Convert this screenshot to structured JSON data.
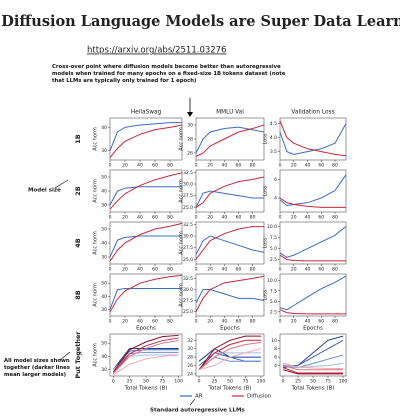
{
  "header": {
    "title": "Diffusion Language Models are Super Data Learners",
    "url": "https://arxiv.org/abs/2511.03276"
  },
  "annotations": {
    "crossover": "Cross-over point where diffusion models become better than autoregressive models when trained for many epochs on a fixed-size 1B tokens dataset (note that LLMs are typically only trained for 1 epoch)",
    "model_size": "Model size",
    "together": "All model sizes shown together (darker lines mean larger models)",
    "standard": "Standard autoregressive LLMs"
  },
  "row_labels": [
    "1B",
    "2B",
    "4B",
    "8B",
    "Put Together"
  ],
  "chart_data": [
    {
      "type": "line",
      "title": "HellaSwag",
      "ylabel": "Acc norm",
      "x": [
        0,
        10,
        20,
        40,
        60,
        80,
        96
      ],
      "xlim": [
        0,
        96
      ],
      "xticks": [
        0,
        20,
        40,
        60,
        80
      ],
      "ylim": [
        26,
        44
      ],
      "yticks": [
        30,
        40
      ],
      "series": [
        {
          "name": "AR",
          "color": "#3a6cc4",
          "values": [
            30,
            38,
            40,
            41,
            41.5,
            42,
            42
          ]
        },
        {
          "name": "Diffusion",
          "color": "#c8283c",
          "values": [
            27,
            31,
            34,
            37,
            39,
            40,
            41
          ]
        }
      ]
    },
    {
      "type": "line",
      "title": "MMLU Val",
      "ylabel": "Acc norm",
      "x": [
        0,
        10,
        20,
        40,
        60,
        80,
        96
      ],
      "xlim": [
        0,
        96
      ],
      "xticks": [
        0,
        20,
        40,
        60,
        80
      ],
      "ylim": [
        25,
        31
      ],
      "yticks": [
        26,
        28,
        30
      ],
      "series": [
        {
          "color": "#3a6cc4",
          "values": [
            26,
            28,
            29,
            29.5,
            29.7,
            29.3,
            29
          ]
        },
        {
          "color": "#c8283c",
          "values": [
            25.5,
            26,
            27,
            28,
            29,
            29.5,
            30
          ]
        }
      ]
    },
    {
      "type": "line",
      "title": "Validation Loss",
      "ylabel": "Loss",
      "x": [
        0,
        10,
        20,
        40,
        60,
        80,
        96
      ],
      "xlim": [
        0,
        96
      ],
      "xticks": [
        0,
        20,
        40,
        60,
        80
      ],
      "ylim": [
        3.2,
        4.7
      ],
      "yticks": [
        3.5,
        {
          "value": 4,
          "label": "4.0"
        },
        4.5
      ],
      "series": [
        {
          "color": "#3a6cc4",
          "values": [
            4.2,
            3.5,
            3.4,
            3.5,
            3.6,
            3.8,
            4.5
          ]
        },
        {
          "color": "#c8283c",
          "values": [
            4.6,
            4.0,
            3.8,
            3.6,
            3.5,
            3.4,
            3.35
          ]
        }
      ]
    },
    {
      "type": "line",
      "ylabel": "Acc norm",
      "x": [
        0,
        10,
        20,
        40,
        60,
        80,
        96
      ],
      "xlim": [
        0,
        96
      ],
      "xticks": [
        0,
        20,
        40,
        60,
        80
      ],
      "ylim": [
        25,
        55
      ],
      "yticks": [
        30,
        40,
        50
      ],
      "series": [
        {
          "color": "#3a6cc4",
          "values": [
            30,
            40,
            42,
            43,
            43,
            43,
            43
          ]
        },
        {
          "color": "#c8283c",
          "values": [
            27,
            33,
            38,
            44,
            48,
            51,
            53
          ]
        }
      ]
    },
    {
      "type": "line",
      "ylabel": "Acc norm",
      "x": [
        0,
        10,
        20,
        40,
        60,
        80,
        96
      ],
      "xlim": [
        0,
        96
      ],
      "xticks": [
        0,
        20,
        40,
        60,
        80
      ],
      "ylim": [
        24,
        33
      ],
      "yticks": [
        {
          "value": 25,
          "label": "25.0"
        },
        27.5,
        {
          "value": 30,
          "label": "30.0"
        },
        32.5
      ],
      "series": [
        {
          "color": "#3a6cc4",
          "values": [
            25,
            28,
            28.5,
            28,
            27.5,
            27,
            27
          ]
        },
        {
          "color": "#c8283c",
          "values": [
            25,
            26,
            28,
            29.5,
            30.5,
            31,
            31.5
          ]
        }
      ]
    },
    {
      "type": "line",
      "ylabel": "Loss",
      "x": [
        0,
        10,
        20,
        40,
        60,
        80,
        96
      ],
      "xlim": [
        0,
        96
      ],
      "xticks": [
        0,
        20,
        40,
        60,
        80
      ],
      "ylim": [
        2.5,
        7
      ],
      "yticks": [
        4,
        6
      ],
      "series": [
        {
          "color": "#3a6cc4",
          "values": [
            3.8,
            3.2,
            3.3,
            3.5,
            4,
            4.8,
            6.5
          ]
        },
        {
          "color": "#c8283c",
          "values": [
            4,
            3.5,
            3.3,
            3.1,
            3,
            3,
            3
          ]
        }
      ]
    },
    {
      "type": "line",
      "ylabel": "Acc norm",
      "x": [
        0,
        10,
        20,
        40,
        60,
        80,
        96
      ],
      "xlim": [
        0,
        96
      ],
      "xticks": [
        0,
        20,
        40,
        60,
        80
      ],
      "ylim": [
        25,
        55
      ],
      "yticks": [
        30,
        40,
        50
      ],
      "series": [
        {
          "color": "#3a6cc4",
          "values": [
            30,
            42,
            44,
            45,
            45,
            45,
            45
          ]
        },
        {
          "color": "#c8283c",
          "values": [
            27,
            35,
            40,
            46,
            50,
            52,
            54
          ]
        }
      ]
    },
    {
      "type": "line",
      "ylabel": "Acc norm",
      "x": [
        0,
        10,
        20,
        40,
        60,
        80,
        96
      ],
      "xlim": [
        0,
        96
      ],
      "xticks": [
        0,
        20,
        40,
        60,
        80
      ],
      "ylim": [
        24,
        33
      ],
      "yticks": [
        {
          "value": 25,
          "label": "25.0"
        },
        27.5,
        {
          "value": 30,
          "label": "30.0"
        },
        32.5
      ],
      "series": [
        {
          "color": "#3a6cc4",
          "values": [
            26,
            29,
            30,
            29,
            28,
            27,
            26.5
          ]
        },
        {
          "color": "#c8283c",
          "values": [
            25,
            27,
            29,
            30.5,
            31.5,
            32,
            32
          ]
        }
      ]
    },
    {
      "type": "line",
      "ylabel": "Loss",
      "x": [
        0,
        10,
        20,
        40,
        60,
        80,
        96
      ],
      "xlim": [
        0,
        96
      ],
      "xticks": [
        0,
        20,
        40,
        60,
        80
      ],
      "ylim": [
        1.5,
        11
      ],
      "yticks": [
        2.5,
        {
          "value": 5,
          "label": "5.0"
        },
        7.5,
        {
          "value": 10,
          "label": "10.0"
        }
      ],
      "series": [
        {
          "color": "#3a6cc4",
          "values": [
            4,
            3,
            3.5,
            5,
            6.5,
            8,
            10
          ]
        },
        {
          "color": "#c8283c",
          "values": [
            3.5,
            2.5,
            2.3,
            2.2,
            2.2,
            2.2,
            2.2
          ]
        }
      ]
    },
    {
      "type": "line",
      "ylabel": "Acc norm",
      "xlabel": "Epochs",
      "x": [
        0,
        10,
        20,
        40,
        60,
        80,
        96
      ],
      "xlim": [
        0,
        96
      ],
      "xticks": [
        0,
        20,
        40,
        60,
        80
      ],
      "ylim": [
        25,
        57
      ],
      "yticks": [
        30,
        40,
        50
      ],
      "series": [
        {
          "color": "#3a6cc4",
          "values": [
            30,
            45,
            46,
            46,
            46,
            46,
            46
          ]
        },
        {
          "color": "#c8283c",
          "values": [
            28,
            38,
            44,
            50,
            53,
            55,
            56
          ]
        }
      ]
    },
    {
      "type": "line",
      "ylabel": "Acc norm",
      "xlabel": "Epochs",
      "x": [
        0,
        10,
        20,
        40,
        60,
        80,
        96
      ],
      "xlim": [
        0,
        96
      ],
      "xticks": [
        0,
        20,
        40,
        60,
        80
      ],
      "ylim": [
        24,
        33.5
      ],
      "yticks": [
        {
          "value": 25,
          "label": "25.0"
        },
        27.5,
        {
          "value": 30,
          "label": "30.0"
        },
        32.5
      ],
      "series": [
        {
          "color": "#3a6cc4",
          "values": [
            27,
            30,
            30,
            29,
            28,
            28,
            27.5
          ]
        },
        {
          "color": "#c8283c",
          "values": [
            25,
            28,
            30,
            31.5,
            32,
            32.5,
            33
          ]
        }
      ]
    },
    {
      "type": "line",
      "ylabel": "Loss",
      "xlabel": "Epochs",
      "x": [
        0,
        10,
        20,
        40,
        60,
        80,
        96
      ],
      "xlim": [
        0,
        96
      ],
      "xticks": [
        0,
        20,
        40,
        60,
        80
      ],
      "ylim": [
        1.5,
        11.5
      ],
      "yticks": [
        2.5,
        {
          "value": 5,
          "label": "5.0"
        },
        7.5,
        {
          "value": 10,
          "label": "10.0"
        }
      ],
      "series": [
        {
          "color": "#3a6cc4",
          "values": [
            3.5,
            3,
            4,
            6,
            8,
            9.5,
            11
          ]
        },
        {
          "color": "#c8283c",
          "values": [
            3,
            2.3,
            2.1,
            2,
            2,
            2,
            2
          ]
        }
      ]
    },
    {
      "type": "line",
      "ylabel": "Acc norm",
      "xlabel": "Total Tokens (B)",
      "x": [
        0,
        25,
        50,
        75,
        100
      ],
      "xlim": [
        -5,
        105
      ],
      "xticks": [
        0,
        25,
        50,
        75,
        100
      ],
      "ylim": [
        25,
        57
      ],
      "yticks": [
        30,
        40,
        50
      ],
      "series": [
        {
          "color": "#1f3f8a",
          "values": [
            30,
            46,
            46,
            46,
            46
          ]
        },
        {
          "color": "#3a62b8",
          "values": [
            30,
            44,
            45,
            45,
            45
          ]
        },
        {
          "color": "#6b8fd4",
          "values": [
            30,
            42,
            43,
            43,
            43
          ]
        },
        {
          "color": "#a5bde8",
          "values": [
            30,
            40,
            41,
            41,
            41
          ]
        },
        {
          "color": "#8b0f24",
          "values": [
            28,
            45,
            51,
            55,
            56
          ]
        },
        {
          "color": "#c0283c",
          "values": [
            27,
            42,
            48,
            52,
            54
          ]
        },
        {
          "color": "#e0707f",
          "values": [
            27,
            40,
            46,
            50,
            52
          ]
        },
        {
          "color": "#f0aab3",
          "values": [
            26,
            34,
            38,
            40,
            41
          ]
        }
      ]
    },
    {
      "type": "line",
      "xlabel": "Total Tokens (B)",
      "x": [
        0,
        25,
        50,
        75,
        100
      ],
      "xlim": [
        -5,
        105
      ],
      "xticks": [
        0,
        25,
        50,
        75,
        100
      ],
      "ylim": [
        23.5,
        33.5
      ],
      "yticks": [
        24,
        26,
        28,
        30,
        32
      ],
      "series": [
        {
          "color": "#1f3f8a",
          "values": [
            27,
            30,
            28,
            28,
            28
          ]
        },
        {
          "color": "#3a62b8",
          "values": [
            26,
            29,
            28,
            27,
            27
          ]
        },
        {
          "color": "#6b8fd4",
          "values": [
            25,
            28,
            27,
            27,
            27
          ]
        },
        {
          "color": "#a5bde8",
          "values": [
            25,
            29,
            29,
            29,
            29
          ]
        },
        {
          "color": "#8b0f24",
          "values": [
            25,
            30,
            32,
            33,
            33
          ]
        },
        {
          "color": "#c0283c",
          "values": [
            25,
            29,
            31,
            32,
            32
          ]
        },
        {
          "color": "#e0707f",
          "values": [
            25,
            28,
            30,
            31,
            31.5
          ]
        },
        {
          "color": "#f0aab3",
          "values": [
            25,
            26,
            28,
            29,
            30
          ]
        }
      ]
    },
    {
      "type": "line",
      "xlabel": "Total Tokens (B)",
      "x": [
        0,
        25,
        50,
        75,
        100
      ],
      "xlim": [
        -5,
        105
      ],
      "xticks": [
        0,
        25,
        50,
        75,
        100
      ],
      "ylim": [
        1.5,
        11.5
      ],
      "yticks": [
        4,
        6,
        8,
        10
      ],
      "series": [
        {
          "color": "#1f3f8a",
          "values": [
            3.5,
            4,
            7,
            10,
            11
          ]
        },
        {
          "color": "#3a62b8",
          "values": [
            4,
            4,
            6,
            8,
            10
          ]
        },
        {
          "color": "#6b8fd4",
          "values": [
            3.8,
            3.5,
            4.5,
            5.5,
            6.5
          ]
        },
        {
          "color": "#a5bde8",
          "values": [
            4.2,
            3.5,
            3.8,
            4,
            4.5
          ]
        },
        {
          "color": "#8b0f24",
          "values": [
            3,
            2,
            2,
            2,
            2
          ]
        },
        {
          "color": "#c0283c",
          "values": [
            3.5,
            2.2,
            2.2,
            2.2,
            2.2
          ]
        },
        {
          "color": "#e0707f",
          "values": [
            4,
            3,
            3,
            3,
            3
          ]
        },
        {
          "color": "#f0aab3",
          "values": [
            4.6,
            3.6,
            3.4,
            3.3,
            3.3
          ]
        }
      ]
    }
  ]
}
